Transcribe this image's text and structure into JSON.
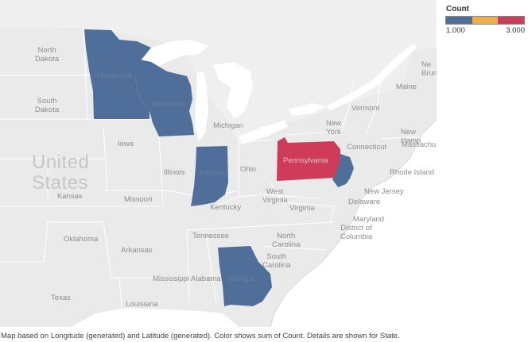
{
  "map": {
    "country_label": "United\nStates",
    "colors": {
      "background": "#f2f2f2",
      "land": "#e9e9e9",
      "water": "#ffffff",
      "border": "#ffffff",
      "low": "#4f6f9a",
      "mid": "#eeb045",
      "high": "#cf3c5a"
    },
    "highlighted_states": [
      {
        "state": "Minnesota",
        "count": 1
      },
      {
        "state": "Wisconsin",
        "count": 1
      },
      {
        "state": "Indiana",
        "count": 1
      },
      {
        "state": "Georgia",
        "count": 1
      },
      {
        "state": "New Jersey",
        "count": 1
      },
      {
        "state": "Pennsylvania",
        "count": 3
      }
    ],
    "place_labels": {
      "north_dakota": "North\nDakota",
      "south_dakota": "South\nDakota",
      "minnesota": "Minnesota",
      "wisconsin": "Wisconsin",
      "michigan": "Michigan",
      "iowa": "Iowa",
      "illinois": "Illinois",
      "indiana": "Indiana",
      "ohio": "Ohio",
      "kansas": "Kansas",
      "missouri": "Missouri",
      "kentucky": "Kentucky",
      "west_virginia": "West\nVirginia",
      "virginia": "Virginia",
      "pennsylvania": "Pennsylvania",
      "new_york": "New\nYork",
      "vermont": "Vermont",
      "maine": "Maine",
      "new_hampshire": "New Hamp",
      "massachusetts": "Massachu",
      "brunswick": "Ne\nBrun",
      "connecticut": "Connecticut",
      "rhode_island": "Rhode Island",
      "new_jersey": "New Jersey",
      "delaware": "Delaware",
      "maryland": "Maryland",
      "dc": "District of\nColumbia",
      "oklahoma": "Oklahoma",
      "arkansas": "Arkansas",
      "tennessee": "Tennessee",
      "north_carolina": "North\nCarolina",
      "south_carolina": "South\nCarolina",
      "mississippi": "Mississippi",
      "alabama": "Alabama",
      "georgia": "Georgia",
      "texas": "Texas",
      "louisiana": "Louisiana"
    }
  },
  "legend": {
    "title": "Count",
    "min_label": "1.000",
    "max_label": "3.000"
  },
  "caption": "Map based on Longitude (generated) and Latitude (generated).  Color shows sum of Count.  Details are shown for State."
}
